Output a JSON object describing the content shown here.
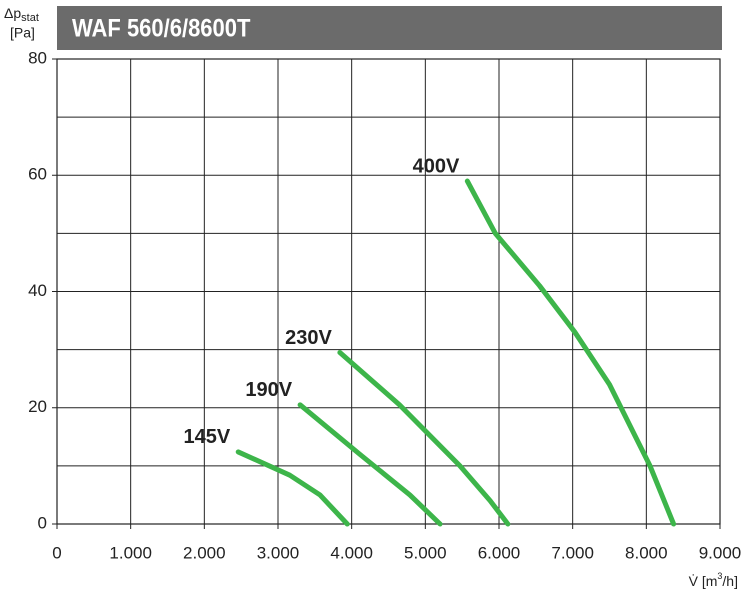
{
  "chart_data": {
    "type": "line",
    "title": "WAF 560/6/8600T",
    "ylabel": {
      "symbol": "Δp",
      "sub": "stat",
      "unit": "[Pa]"
    },
    "xlabel": {
      "text": "V̇ [m",
      "sup": "3",
      "end": "/h]"
    },
    "xlim": [
      0,
      9000
    ],
    "xticks": [
      0,
      {
        "value": 1000,
        "label": "1.000"
      },
      {
        "value": 2000,
        "label": "2.000"
      },
      {
        "value": 3000,
        "label": "3.000"
      },
      {
        "value": 4000,
        "label": "4.000"
      },
      {
        "value": 5000,
        "label": "5.000"
      },
      {
        "value": 6000,
        "label": "6.000"
      },
      {
        "value": 7000,
        "label": "7.000"
      },
      {
        "value": 8000,
        "label": "8.000"
      },
      {
        "value": 9000,
        "label": "9.000"
      }
    ],
    "ylim": [
      0,
      80
    ],
    "yticks": [
      0,
      20,
      40,
      60,
      80
    ],
    "y_minor_grid": [
      10,
      30,
      50,
      70
    ],
    "grid": true,
    "series": [
      {
        "name": "145V",
        "color": "#3db54a",
        "x": [
          2460,
          3160,
          3570,
          3940
        ],
        "values": [
          12.4,
          8.4,
          5,
          0
        ]
      },
      {
        "name": "190V",
        "color": "#3db54a",
        "x": [
          3300,
          4110,
          4790,
          5200
        ],
        "values": [
          20.5,
          12,
          5,
          0
        ]
      },
      {
        "name": "230V",
        "color": "#3db54a",
        "x": [
          3840,
          4650,
          5470,
          5880,
          6120
        ],
        "values": [
          29.5,
          20.5,
          10,
          4,
          0
        ]
      },
      {
        "name": "400V",
        "color": "#3db54a",
        "x": [
          5570,
          5950,
          6550,
          7030,
          7500,
          8050,
          8370
        ],
        "values": [
          59,
          50,
          41,
          33,
          24,
          10,
          0
        ]
      }
    ]
  }
}
